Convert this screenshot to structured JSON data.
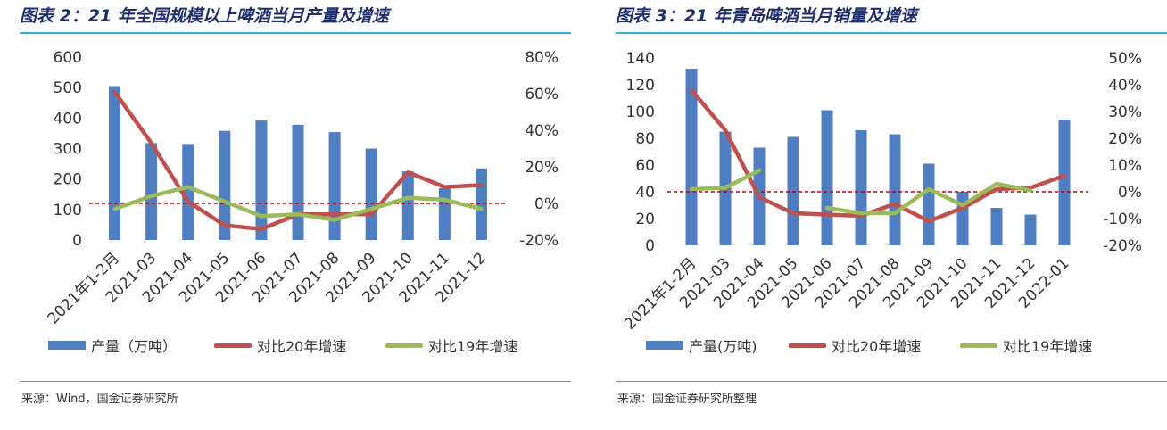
{
  "colors": {
    "bar": "#4f7fc1",
    "line20": "#c0504d",
    "line19": "#9bbb59",
    "zero": "#c00000",
    "rule": "#3aa7d8",
    "title": "#1f2f6b"
  },
  "panels": [
    {
      "title": "图表 2：21 年全国规模以上啤酒当月产量及增速",
      "source": "来源：Wind，国金证券研究所",
      "legend": [
        "产量（万吨）",
        "对比20年增速",
        "对比19年增速"
      ],
      "chart_data": {
        "type": "bar",
        "categories": [
          "2021年1-2月",
          "2021-03",
          "2021-04",
          "2021-05",
          "2021-06",
          "2021-07",
          "2021-08",
          "2021-09",
          "2021-10",
          "2021-11",
          "2021-12"
        ],
        "series": [
          {
            "name": "产量（万吨）",
            "type": "bar",
            "axis": "left",
            "values": [
              505,
              318,
              315,
              358,
              392,
              378,
              354,
              300,
              225,
              170,
              235
            ]
          },
          {
            "name": "对比20年增速",
            "type": "line",
            "axis": "right",
            "values": [
              61,
              33,
              1,
              -12,
              -14,
              -6,
              -6,
              -6,
              17,
              9,
              10
            ]
          },
          {
            "name": "对比19年增速",
            "type": "line",
            "axis": "right",
            "values": [
              -3,
              4,
              9,
              1,
              -7,
              -6,
              -9,
              -3,
              3,
              2,
              -3
            ]
          }
        ],
        "y_left": {
          "min": 0,
          "max": 600,
          "ticks": [
            "600",
            "500",
            "400",
            "300",
            "200",
            "100",
            "0"
          ]
        },
        "y_right": {
          "min": -20,
          "max": 80,
          "ticks": [
            "80%",
            "60%",
            "40%",
            "20%",
            "0%",
            "-20%"
          ]
        },
        "reference_line": {
          "axis": "right",
          "value": 0,
          "style": "dashed"
        },
        "grid": false,
        "legend_position": "bottom"
      }
    },
    {
      "title": "图表 3：21 年青岛啤酒当月销量及增速",
      "source": "来源：国金证券研究所整理",
      "legend": [
        "产量(万吨)",
        "对比20年增速",
        "对比19年增速"
      ],
      "chart_data": {
        "type": "bar",
        "categories": [
          "2021年1-2月",
          "2021-03",
          "2021-04",
          "2021-05",
          "2021-06",
          "2021-07",
          "2021-08",
          "2021-09",
          "2021-10",
          "2021-11",
          "2021-12",
          "2022-01"
        ],
        "series": [
          {
            "name": "产量(万吨)",
            "type": "bar",
            "axis": "left",
            "values": [
              132,
              85,
              73,
              81,
              101,
              86,
              83,
              61,
              40,
              28,
              23,
              94
            ]
          },
          {
            "name": "对比20年增速",
            "type": "line",
            "axis": "right",
            "values": [
              38,
              23,
              -2,
              -8,
              -8.5,
              -9,
              -4.5,
              -11,
              -6,
              1,
              1.5,
              6
            ]
          },
          {
            "name": "对比19年增速",
            "type": "line",
            "axis": "right",
            "values": [
              1,
              1.5,
              8,
              null,
              -6,
              -8,
              -8,
              1,
              -5,
              3,
              0.5,
              null
            ]
          }
        ],
        "y_left": {
          "min": 0,
          "max": 140,
          "ticks": [
            "140",
            "120",
            "100",
            "80",
            "60",
            "40",
            "20",
            "0"
          ]
        },
        "y_right": {
          "min": -20,
          "max": 50,
          "ticks": [
            "50%",
            "40%",
            "30%",
            "20%",
            "10%",
            "0%",
            "-10%",
            "-20%"
          ]
        },
        "reference_line": {
          "axis": "right",
          "value": 0,
          "style": "dashed"
        },
        "grid": false,
        "legend_position": "bottom"
      }
    }
  ]
}
